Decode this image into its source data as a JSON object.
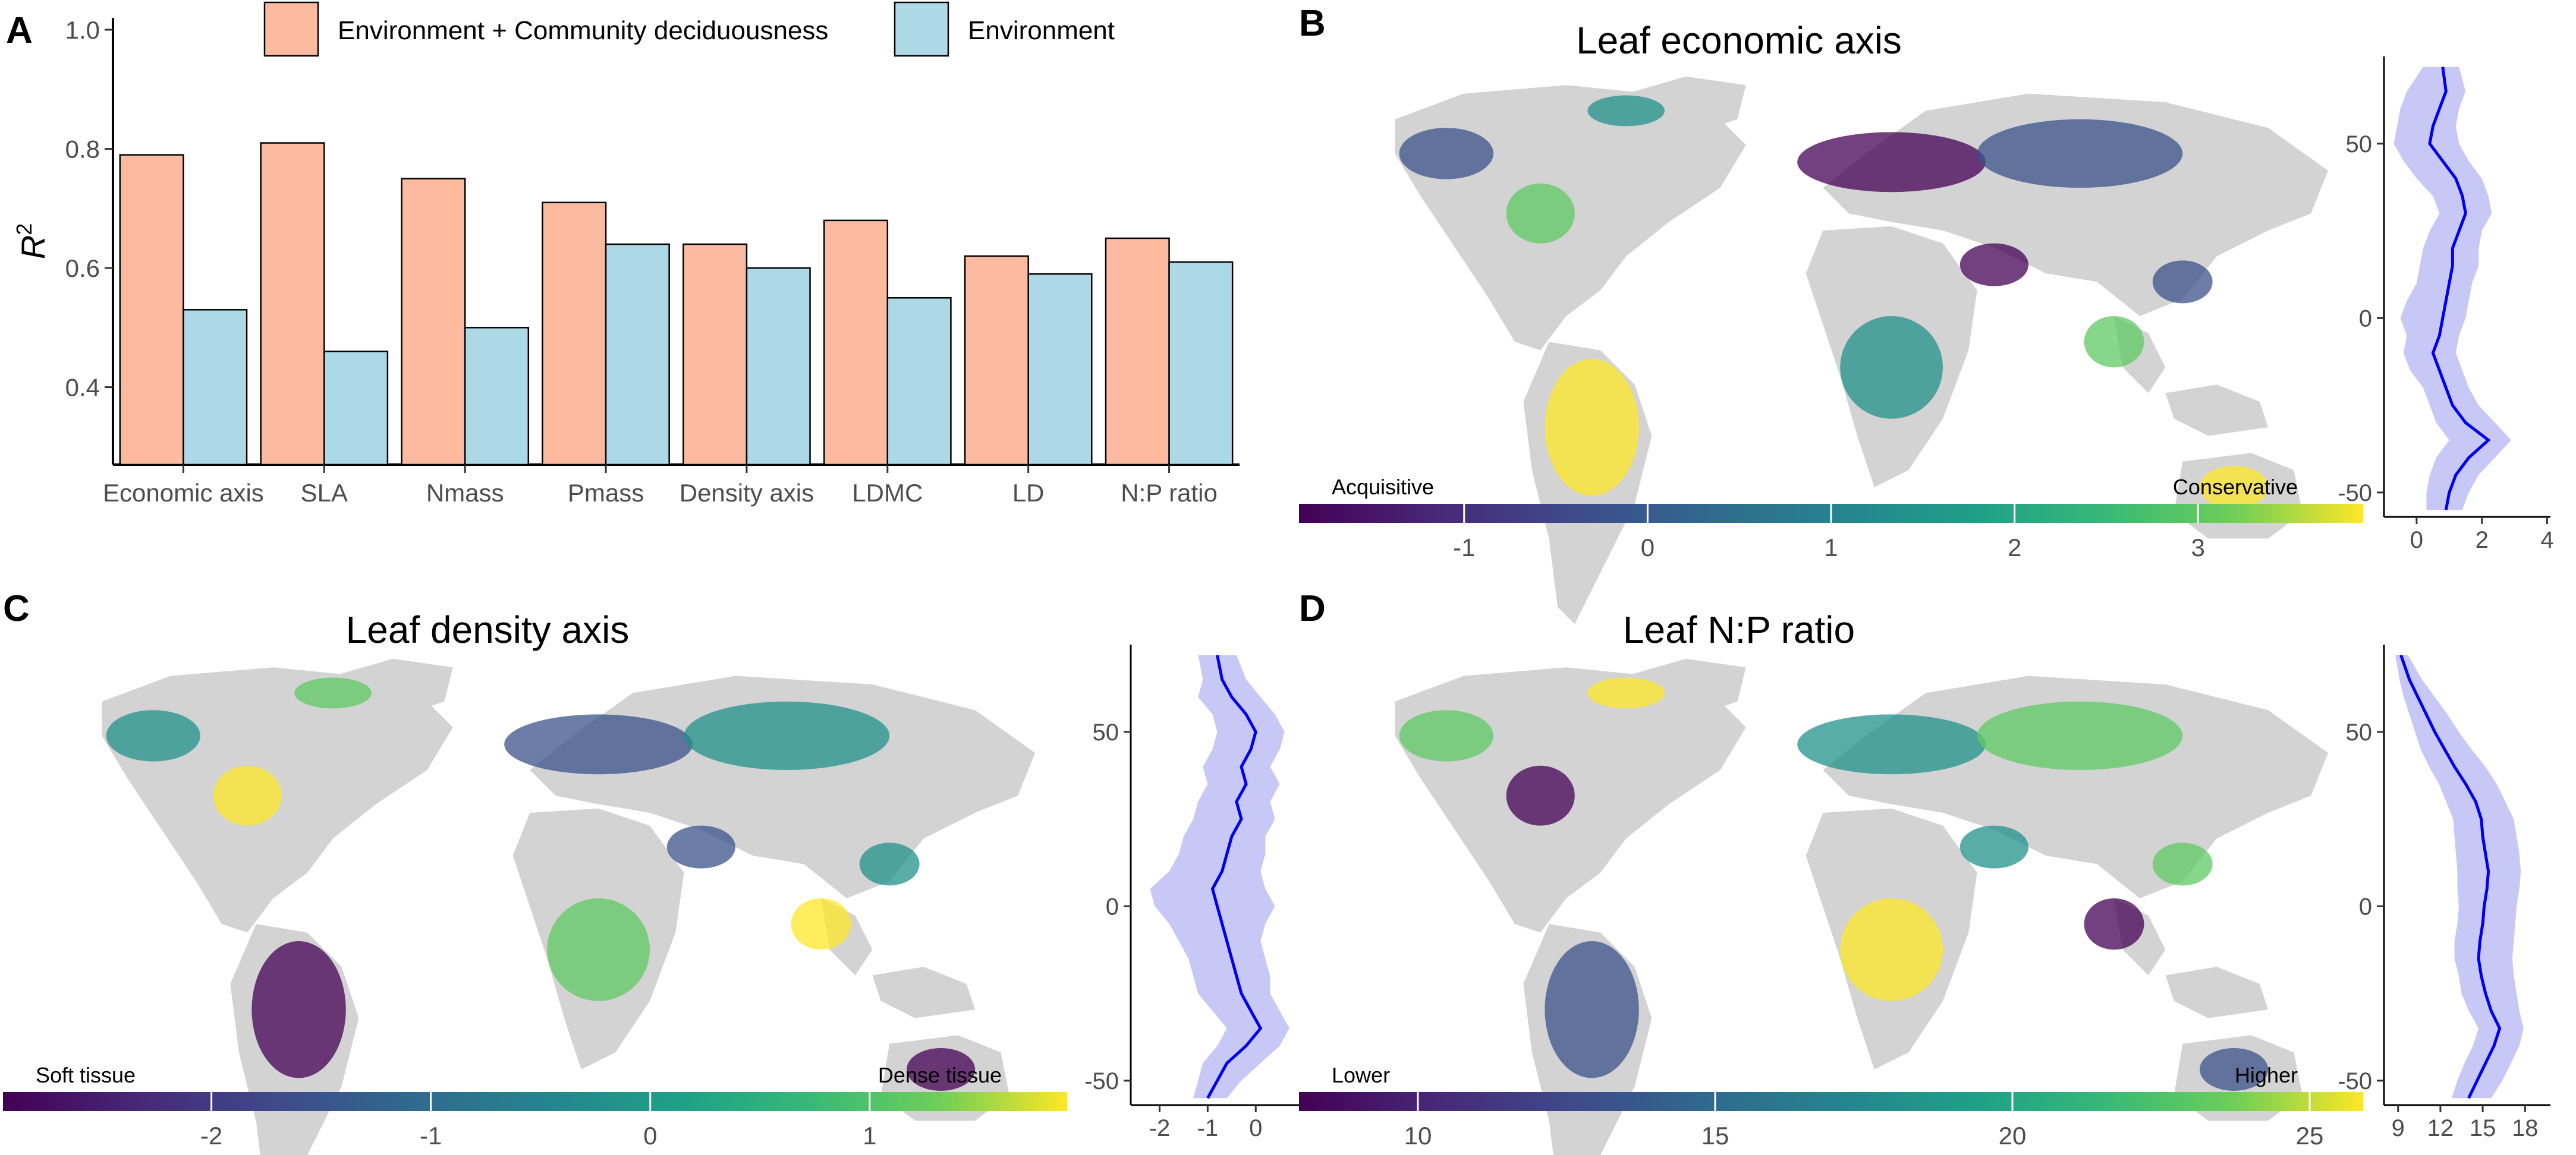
{
  "panels": {
    "a": "A",
    "b": "B",
    "c": "C",
    "d": "D"
  },
  "chart_data": [
    {
      "type": "bar",
      "panel": "A",
      "categories": [
        "Economic axis",
        "SLA",
        "Nmass",
        "Pmass",
        "Density axis",
        "LDMC",
        "LD",
        "N:P ratio"
      ],
      "series": [
        {
          "name": "Environment + Community deciduousness",
          "color": "#fcbba1",
          "values": [
            0.79,
            0.81,
            0.75,
            0.71,
            0.64,
            0.68,
            0.62,
            0.65
          ]
        },
        {
          "name": "Environment",
          "color": "#add8e6",
          "values": [
            0.53,
            0.46,
            0.5,
            0.64,
            0.6,
            0.55,
            0.59,
            0.61
          ]
        }
      ],
      "ylabel": "R",
      "ylabel_sup": "2",
      "ylim": [
        0.27,
        1.02
      ],
      "yticks": [
        "0.4",
        "0.6",
        "0.8",
        "1.0"
      ],
      "ytick_values": [
        0.4,
        0.6,
        0.8,
        1.0
      ],
      "legend_position": "top"
    },
    {
      "type": "map",
      "panel": "B",
      "title": "Leaf economic axis",
      "colorbar": {
        "ticks": [
          "-1",
          "0",
          "1",
          "2",
          "3"
        ],
        "tick_values": [
          -1,
          0,
          1,
          2,
          3
        ],
        "range": [
          -1.9,
          3.9
        ],
        "low_label": "Acquisitive",
        "high_label": "Conservative"
      },
      "latitude_profile": {
        "yticks": [
          "50",
          "0",
          "-50"
        ],
        "ytick_values": [
          50,
          0,
          -50
        ],
        "xticks": [
          "0",
          "2",
          "4"
        ],
        "xtick_values": [
          0,
          2,
          4
        ],
        "xlim": [
          -1.0,
          4.1
        ],
        "ylim": [
          -57,
          75
        ],
        "lat": [
          72,
          65,
          60,
          55,
          50,
          45,
          40,
          35,
          30,
          25,
          20,
          15,
          10,
          5,
          0,
          -5,
          -10,
          -15,
          -20,
          -25,
          -30,
          -35,
          -40,
          -45,
          -50,
          -55
        ],
        "mean": [
          0.8,
          0.9,
          0.7,
          0.5,
          0.4,
          0.8,
          1.2,
          1.4,
          1.5,
          1.3,
          1.1,
          1.1,
          1.0,
          0.9,
          0.8,
          0.7,
          0.5,
          0.7,
          0.9,
          1.1,
          1.5,
          2.2,
          1.6,
          1.2,
          1.0,
          0.9
        ],
        "low": [
          0.2,
          -0.3,
          -0.5,
          -0.6,
          -0.7,
          -0.4,
          0.0,
          0.5,
          0.7,
          0.4,
          0.2,
          0.1,
          0.0,
          -0.3,
          -0.5,
          -0.3,
          -0.4,
          -0.2,
          0.2,
          0.4,
          0.6,
          1.0,
          0.6,
          0.4,
          0.3,
          0.3
        ],
        "high": [
          1.3,
          1.5,
          1.3,
          1.2,
          1.3,
          1.6,
          2.0,
          2.2,
          2.3,
          2.0,
          1.9,
          1.9,
          1.7,
          1.6,
          1.5,
          1.3,
          1.2,
          1.4,
          1.6,
          1.9,
          2.4,
          2.9,
          2.4,
          1.9,
          1.6,
          1.4
        ]
      }
    },
    {
      "type": "map",
      "panel": "C",
      "title": "Leaf density axis",
      "colorbar": {
        "ticks": [
          "-2",
          "-1",
          "0",
          "1"
        ],
        "tick_values": [
          -2,
          -1,
          0,
          1
        ],
        "range": [
          -2.95,
          1.9
        ],
        "low_label": "Soft tissue",
        "high_label": "Dense tissue"
      },
      "latitude_profile": {
        "yticks": [
          "50",
          "0",
          "-50"
        ],
        "ytick_values": [
          50,
          0,
          -50
        ],
        "xticks": [
          "-2",
          "-1",
          "0"
        ],
        "xtick_values": [
          -2,
          -1,
          0
        ],
        "xlim": [
          -2.6,
          0.9
        ],
        "ylim": [
          -57,
          75
        ],
        "lat": [
          72,
          65,
          60,
          55,
          50,
          45,
          40,
          35,
          30,
          25,
          20,
          15,
          10,
          5,
          0,
          -5,
          -10,
          -15,
          -20,
          -25,
          -30,
          -35,
          -40,
          -45,
          -50,
          -55
        ],
        "mean": [
          -0.8,
          -0.7,
          -0.5,
          -0.2,
          0.0,
          -0.1,
          -0.3,
          -0.2,
          -0.4,
          -0.3,
          -0.5,
          -0.6,
          -0.7,
          -0.9,
          -0.8,
          -0.7,
          -0.6,
          -0.5,
          -0.4,
          -0.3,
          -0.1,
          0.1,
          -0.2,
          -0.6,
          -0.8,
          -1.0
        ],
        "low": [
          -1.2,
          -1.1,
          -1.2,
          -0.9,
          -0.8,
          -0.9,
          -1.1,
          -1.0,
          -1.2,
          -1.3,
          -1.5,
          -1.6,
          -1.8,
          -2.2,
          -2.1,
          -1.8,
          -1.6,
          -1.4,
          -1.3,
          -1.2,
          -0.9,
          -0.6,
          -0.8,
          -1.1,
          -1.2,
          -1.3
        ],
        "high": [
          -0.4,
          -0.2,
          0.1,
          0.4,
          0.6,
          0.5,
          0.3,
          0.5,
          0.3,
          0.4,
          0.2,
          0.2,
          0.1,
          0.2,
          0.4,
          0.2,
          0.1,
          0.2,
          0.3,
          0.3,
          0.5,
          0.7,
          0.5,
          0.1,
          -0.3,
          -0.6
        ]
      }
    },
    {
      "type": "map",
      "panel": "D",
      "title": "Leaf N:P ratio",
      "colorbar": {
        "ticks": [
          "10",
          "15",
          "20",
          "25"
        ],
        "tick_values": [
          10,
          15,
          20,
          25
        ],
        "range": [
          8.0,
          25.9
        ],
        "low_label": "Lower",
        "high_label": "Higher"
      },
      "latitude_profile": {
        "yticks": [
          "50",
          "0",
          "-50"
        ],
        "ytick_values": [
          50,
          0,
          -50
        ],
        "xticks": [
          "9",
          "12",
          "15",
          "18"
        ],
        "xtick_values": [
          9,
          12,
          15,
          18
        ],
        "xlim": [
          8.0,
          19.8
        ],
        "ylim": [
          -57,
          75
        ],
        "lat": [
          72,
          65,
          60,
          55,
          50,
          45,
          40,
          35,
          30,
          25,
          20,
          15,
          10,
          5,
          0,
          -5,
          -10,
          -15,
          -20,
          -25,
          -30,
          -35,
          -40,
          -45,
          -50,
          -55
        ],
        "mean": [
          9.2,
          9.8,
          10.4,
          11.0,
          11.6,
          12.3,
          13.0,
          13.8,
          14.5,
          14.9,
          15.0,
          15.2,
          15.4,
          15.3,
          15.1,
          15.0,
          14.8,
          14.7,
          14.9,
          15.2,
          15.6,
          16.2,
          15.8,
          15.2,
          14.6,
          14.0
        ],
        "low": [
          8.8,
          9.1,
          9.4,
          9.8,
          10.2,
          10.6,
          11.2,
          11.9,
          12.4,
          12.9,
          13.0,
          13.1,
          13.2,
          13.2,
          13.3,
          13.2,
          13.0,
          13.0,
          13.3,
          13.5,
          14.0,
          14.7,
          14.3,
          13.7,
          13.2,
          12.8
        ],
        "high": [
          9.7,
          10.7,
          11.6,
          12.5,
          13.3,
          14.2,
          15.2,
          16.0,
          16.6,
          17.2,
          17.4,
          17.6,
          17.7,
          17.6,
          17.4,
          17.3,
          17.2,
          17.1,
          17.2,
          17.4,
          17.6,
          17.9,
          17.6,
          17.0,
          16.4,
          15.6
        ]
      }
    }
  ],
  "colors": {
    "land": "#d3d3d3",
    "profile_line": "#0000ee",
    "profile_band": "#c8c8f7"
  }
}
